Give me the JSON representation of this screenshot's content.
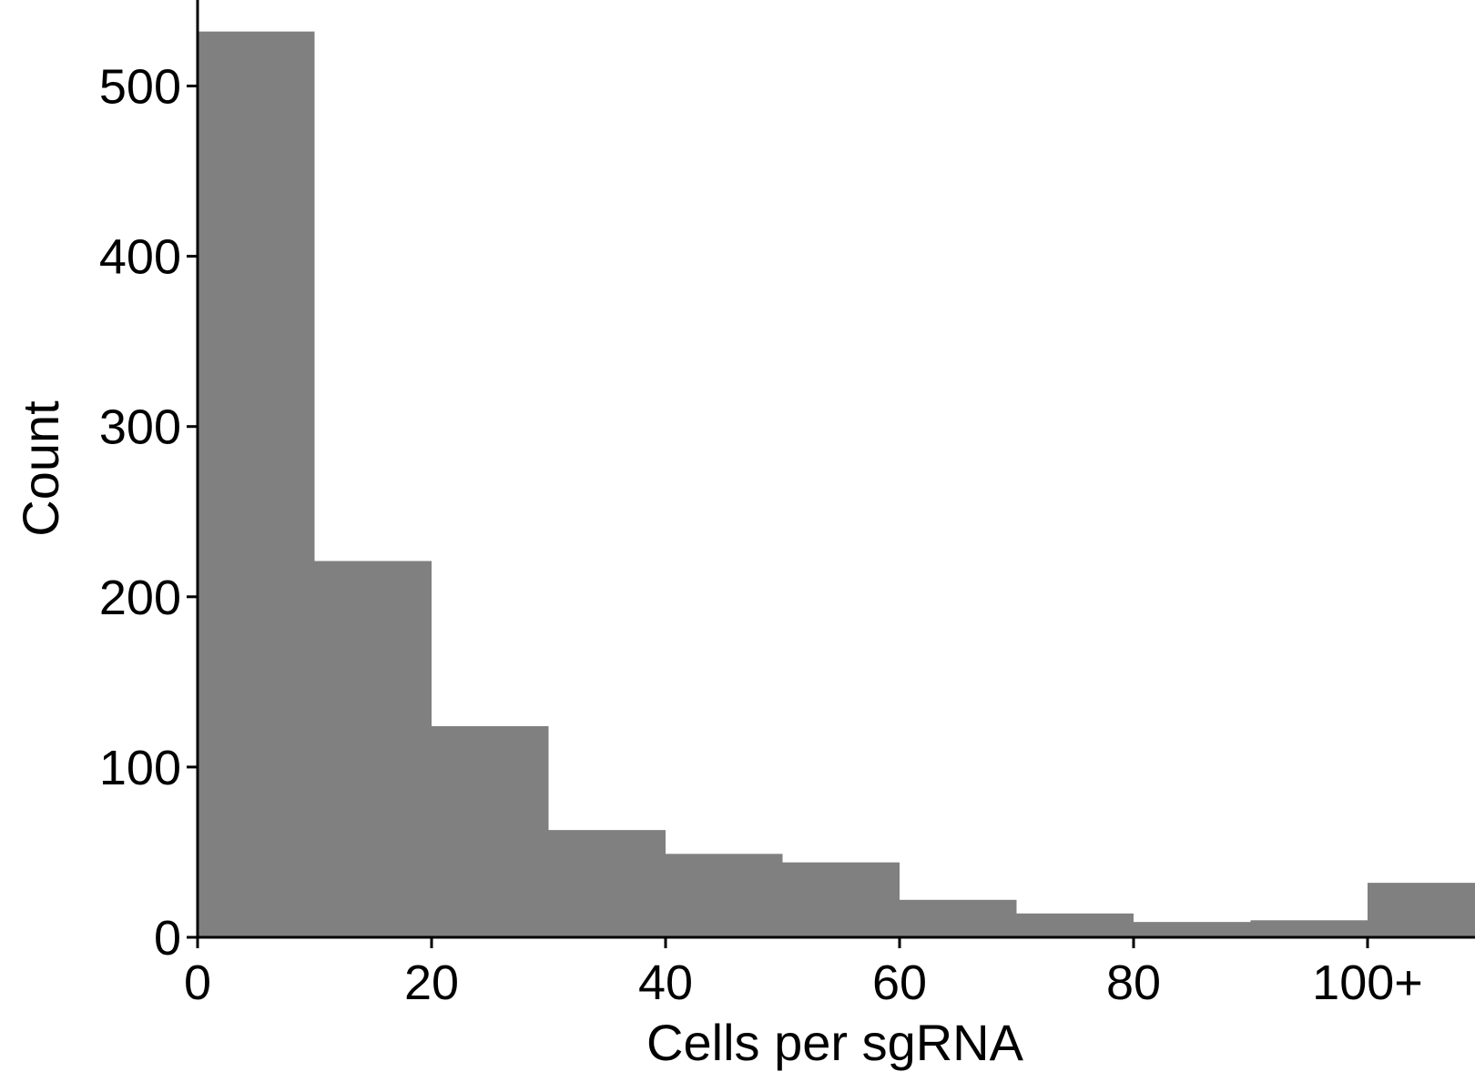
{
  "chart_data": {
    "type": "bar",
    "subtype": "histogram",
    "title": "",
    "xlabel": "Cells per sgRNA",
    "ylabel": "Count",
    "bin_width": 10,
    "bins": [
      {
        "x0": 0,
        "x1": 10,
        "count": 532
      },
      {
        "x0": 10,
        "x1": 20,
        "count": 221
      },
      {
        "x0": 20,
        "x1": 30,
        "count": 124
      },
      {
        "x0": 30,
        "x1": 40,
        "count": 63
      },
      {
        "x0": 40,
        "x1": 50,
        "count": 49
      },
      {
        "x0": 50,
        "x1": 60,
        "count": 44
      },
      {
        "x0": 60,
        "x1": 70,
        "count": 22
      },
      {
        "x0": 70,
        "x1": 80,
        "count": 14
      },
      {
        "x0": 80,
        "x1": 90,
        "count": 9
      },
      {
        "x0": 90,
        "x1": 100,
        "count": 10
      },
      {
        "x0": 100,
        "x1": 110,
        "count": 32
      }
    ],
    "xlim": [
      0,
      110
    ],
    "ylim": [
      0,
      550
    ],
    "xticks": [
      {
        "value": 0,
        "label": "0"
      },
      {
        "value": 20,
        "label": "20"
      },
      {
        "value": 40,
        "label": "40"
      },
      {
        "value": 60,
        "label": "60"
      },
      {
        "value": 80,
        "label": "80"
      },
      {
        "value": 100,
        "label": "100+"
      }
    ],
    "yticks": [
      {
        "value": 0,
        "label": "0"
      },
      {
        "value": 100,
        "label": "100"
      },
      {
        "value": 200,
        "label": "200"
      },
      {
        "value": 300,
        "label": "300"
      },
      {
        "value": 400,
        "label": "400"
      },
      {
        "value": 500,
        "label": "500"
      }
    ],
    "bar_color": "#808080",
    "axis_color": "#000000",
    "grid": false,
    "legend": false
  }
}
